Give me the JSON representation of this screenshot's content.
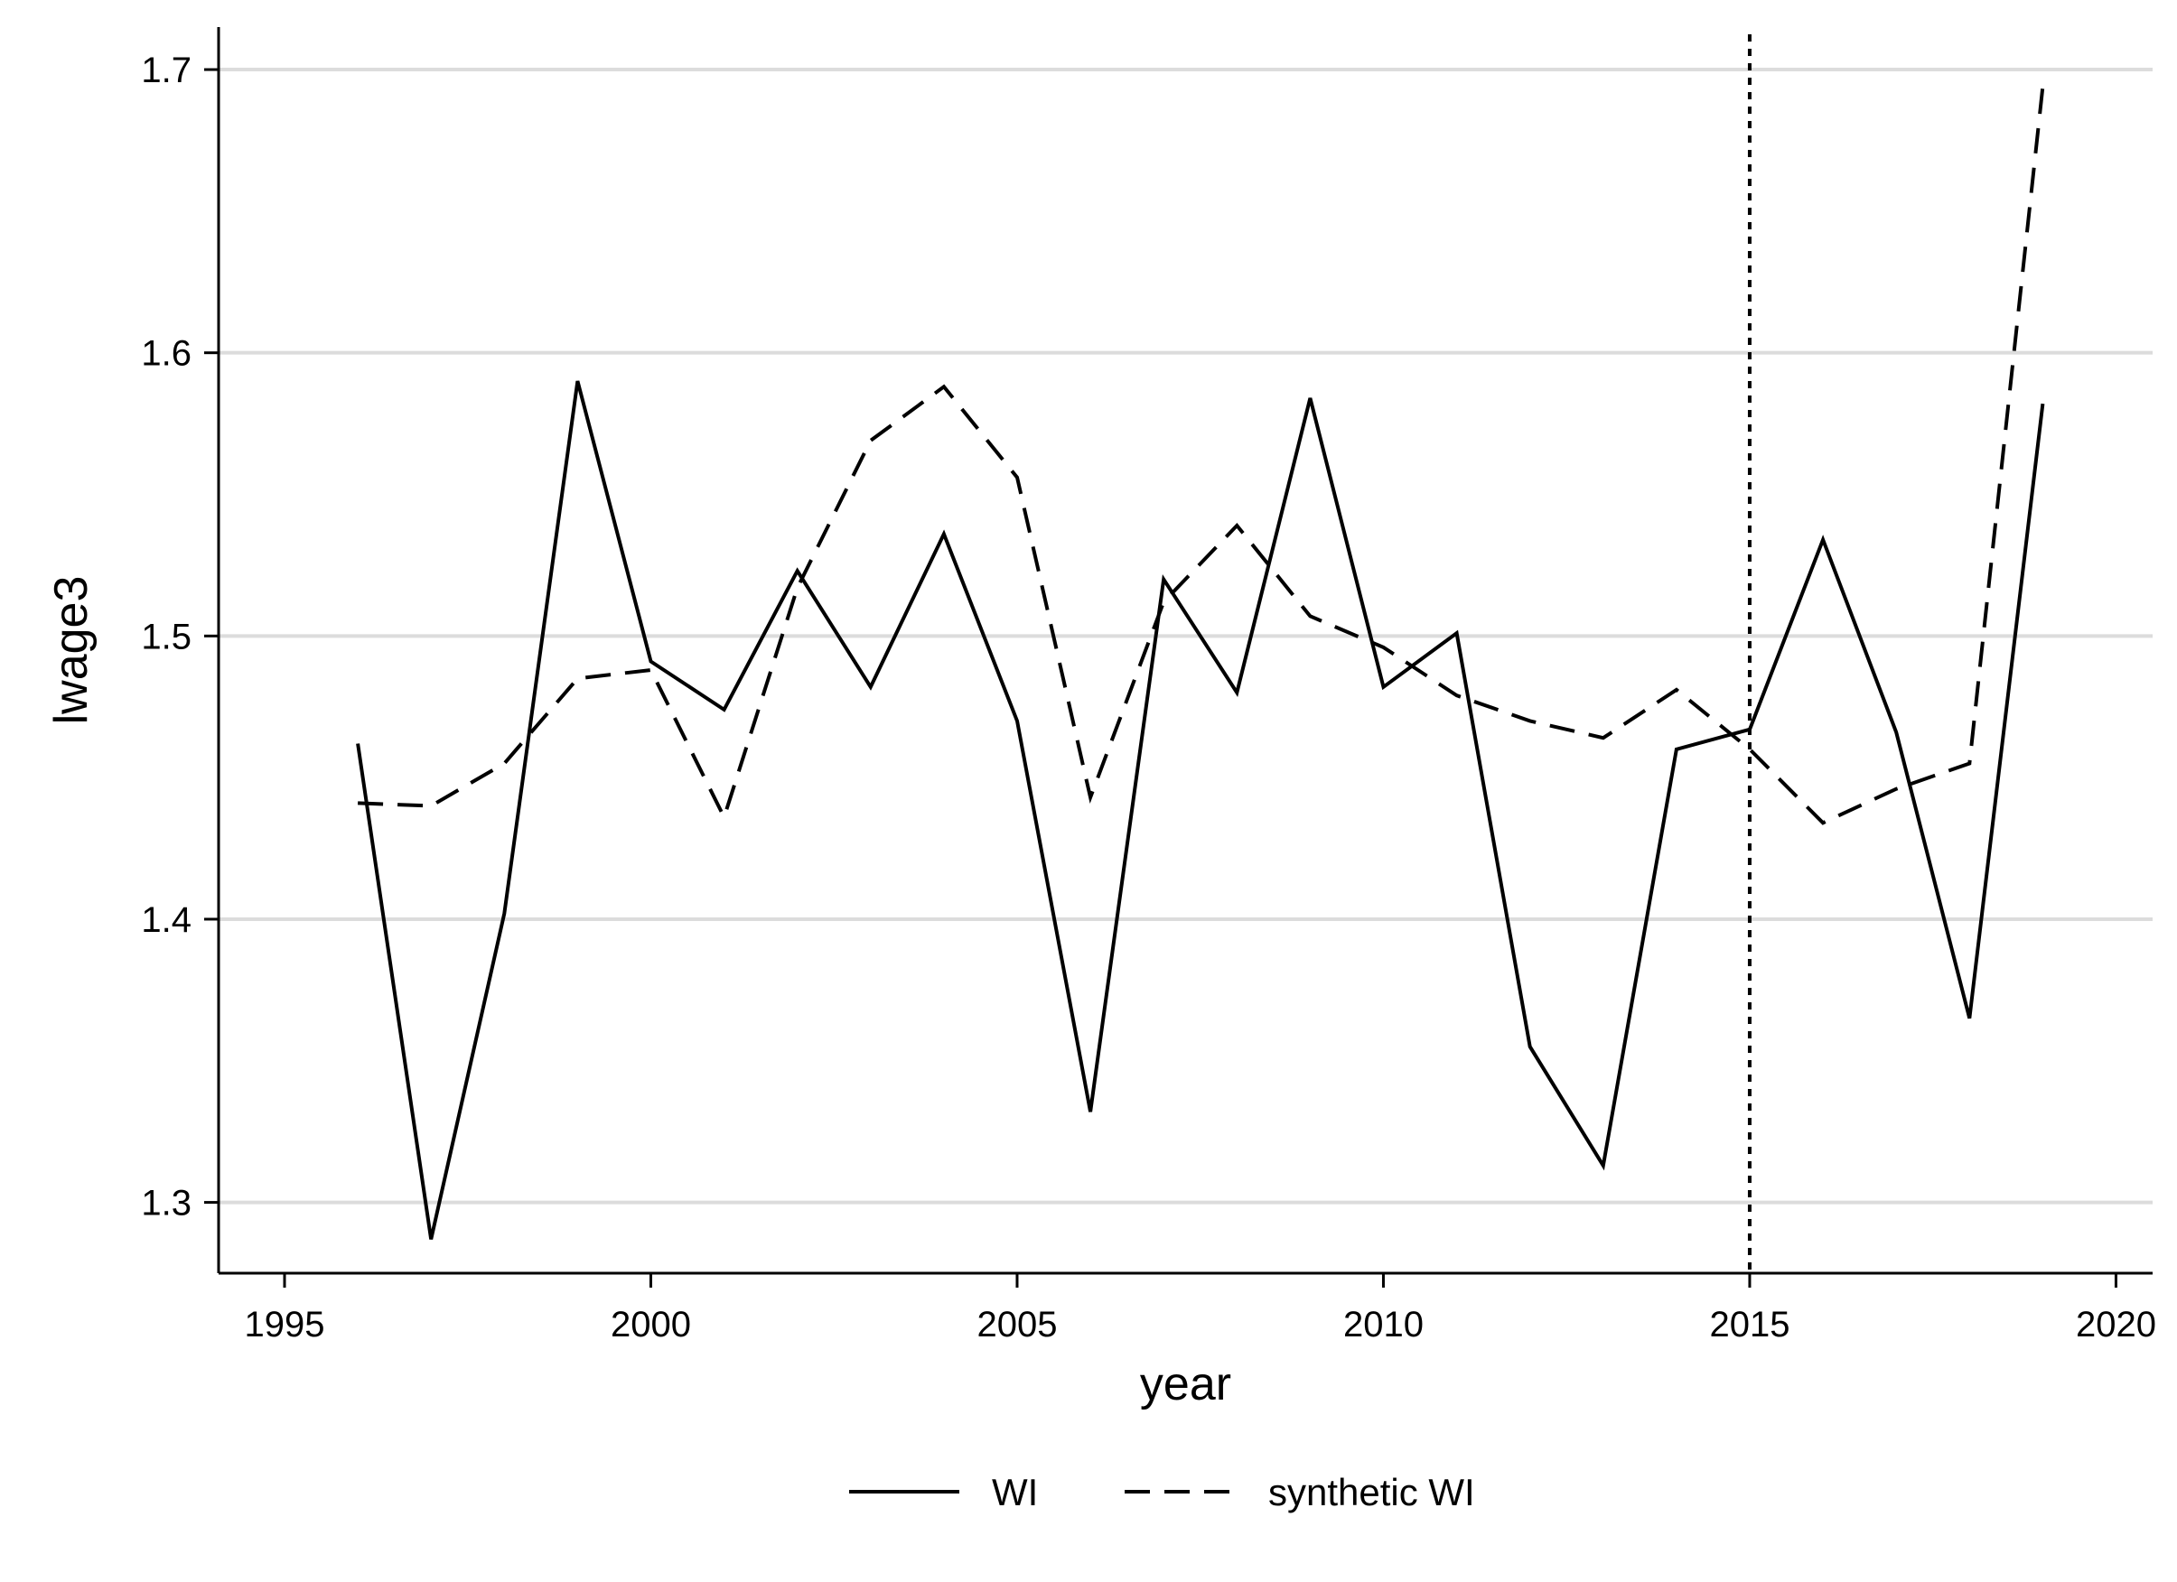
{
  "chart_data": {
    "type": "line",
    "xlabel": "year",
    "ylabel": "lwage3",
    "xlim": [
      1994.1,
      2020.5
    ],
    "ylim": [
      1.275,
      1.715
    ],
    "xticks": [
      1995,
      2000,
      2005,
      2010,
      2015,
      2020
    ],
    "yticks": [
      1.3,
      1.4,
      1.5,
      1.6,
      1.7
    ],
    "xtick_labels": [
      "1995",
      "2000",
      "2005",
      "2010",
      "2015",
      "2020"
    ],
    "ytick_labels": [
      "1.3",
      "1.4",
      "1.5",
      "1.6",
      "1.7"
    ],
    "grid": "horizontal",
    "reference_line_x": 2015,
    "legend_position": "bottom",
    "x": [
      1996,
      1997,
      1998,
      1999,
      2000,
      2001,
      2002,
      2003,
      2004,
      2005,
      2006,
      2007,
      2008,
      2009,
      2010,
      2011,
      2012,
      2013,
      2014,
      2015,
      2016,
      2017,
      2018,
      2019
    ],
    "series": [
      {
        "name": "WI",
        "style": "solid",
        "values": [
          1.462,
          1.287,
          1.402,
          1.59,
          1.491,
          1.474,
          1.523,
          1.482,
          1.536,
          1.47,
          1.332,
          1.52,
          1.48,
          1.584,
          1.482,
          1.501,
          1.355,
          1.313,
          1.46,
          1.467,
          1.534,
          1.466,
          1.365,
          1.582
        ]
      },
      {
        "name": "synthetic WI",
        "style": "dashed",
        "values": [
          1.441,
          1.44,
          1.455,
          1.485,
          1.488,
          1.436,
          1.517,
          1.569,
          1.588,
          1.556,
          1.443,
          1.512,
          1.539,
          1.507,
          1.496,
          1.479,
          1.47,
          1.464,
          1.481,
          1.46,
          1.434,
          1.446,
          1.455,
          1.694
        ]
      }
    ]
  }
}
